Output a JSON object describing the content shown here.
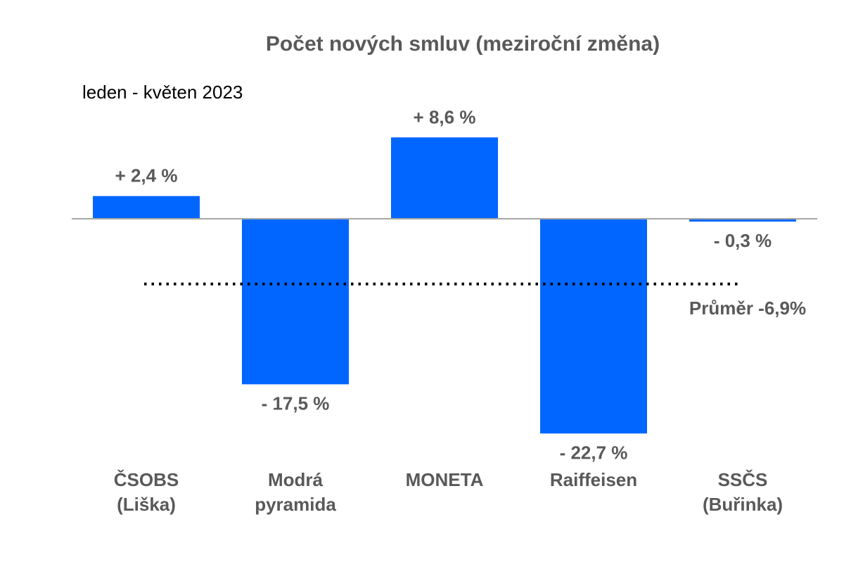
{
  "chart_data": {
    "type": "bar",
    "title": "Počet nových smluv (meziroční změna)",
    "subtitle": "leden - květen 2023",
    "categories": [
      [
        "ČSOBS",
        "(Liška)"
      ],
      [
        "Modrá",
        "pyramida"
      ],
      [
        "MONETA"
      ],
      [
        "Raiffeisen"
      ],
      [
        "SSČS",
        "(Buřinka)"
      ]
    ],
    "values": [
      2.4,
      -17.5,
      8.6,
      -22.7,
      -0.3
    ],
    "data_labels": [
      "+ 2,4 %",
      "- 17,5 %",
      "+ 8,6 %",
      "- 22,7 %",
      "- 0,3 %"
    ],
    "average": {
      "value": -6.9,
      "label": "Průměr -6,9%"
    },
    "colors": {
      "bar": "#0066FF",
      "axis": "#A6A6A6",
      "average_line": "#000000"
    },
    "grid": false
  }
}
